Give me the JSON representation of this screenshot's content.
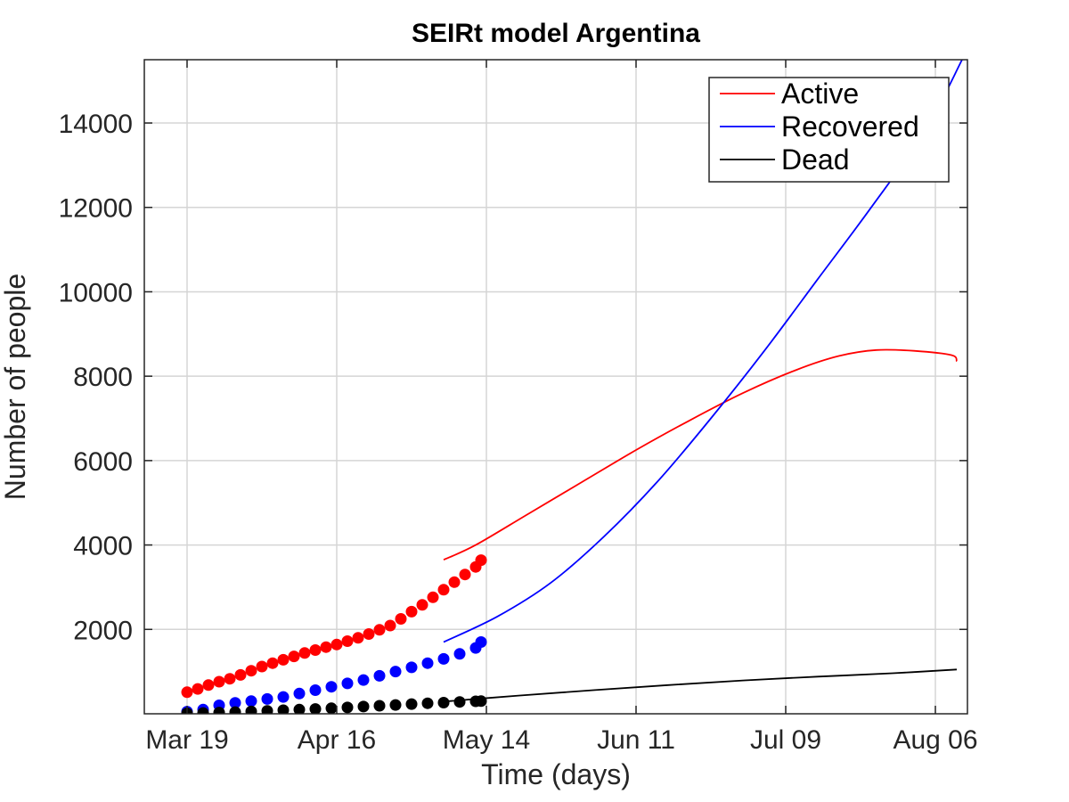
{
  "chart_data": {
    "type": "line",
    "title": "SEIRt model Argentina",
    "xlabel": "Time (days)",
    "ylabel": "Number of people",
    "x_axis_kind": "date",
    "x_range_days_from_Mar19": [
      -8,
      146
    ],
    "ylim": [
      0,
      15500
    ],
    "xticks": [
      {
        "label": "Mar 19",
        "date": "2020-03-19"
      },
      {
        "label": "Apr 16",
        "date": "2020-04-16"
      },
      {
        "label": "May 14",
        "date": "2020-05-14"
      },
      {
        "label": "Jun 11",
        "date": "2020-06-11"
      },
      {
        "label": "Jul 09",
        "date": "2020-07-09"
      },
      {
        "label": "Aug 06",
        "date": "2020-08-06"
      }
    ],
    "yticks": [
      2000,
      4000,
      6000,
      8000,
      10000,
      12000,
      14000
    ],
    "grid": true,
    "legend_position": "top-right",
    "series": [
      {
        "name": "Active",
        "color": "#ff0000",
        "model": [
          {
            "date": "2020-05-06",
            "y": 3650
          },
          {
            "date": "2020-05-12",
            "y": 4000
          },
          {
            "date": "2020-05-22",
            "y": 4750
          },
          {
            "date": "2020-06-01",
            "y": 5500
          },
          {
            "date": "2020-06-11",
            "y": 6250
          },
          {
            "date": "2020-06-21",
            "y": 6950
          },
          {
            "date": "2020-07-01",
            "y": 7600
          },
          {
            "date": "2020-07-11",
            "y": 8150
          },
          {
            "date": "2020-07-19",
            "y": 8480
          },
          {
            "date": "2020-07-26",
            "y": 8620
          },
          {
            "date": "2020-08-02",
            "y": 8600
          },
          {
            "date": "2020-08-09",
            "y": 8500
          },
          {
            "date": "2020-08-10",
            "y": 8350
          }
        ],
        "observed": [
          {
            "date": "2020-03-19",
            "y": 510
          },
          {
            "date": "2020-03-21",
            "y": 590
          },
          {
            "date": "2020-03-23",
            "y": 680
          },
          {
            "date": "2020-03-25",
            "y": 760
          },
          {
            "date": "2020-03-27",
            "y": 830
          },
          {
            "date": "2020-03-29",
            "y": 920
          },
          {
            "date": "2020-03-31",
            "y": 1020
          },
          {
            "date": "2020-04-02",
            "y": 1120
          },
          {
            "date": "2020-04-04",
            "y": 1200
          },
          {
            "date": "2020-04-06",
            "y": 1280
          },
          {
            "date": "2020-04-08",
            "y": 1360
          },
          {
            "date": "2020-04-10",
            "y": 1440
          },
          {
            "date": "2020-04-12",
            "y": 1510
          },
          {
            "date": "2020-04-14",
            "y": 1580
          },
          {
            "date": "2020-04-16",
            "y": 1640
          },
          {
            "date": "2020-04-18",
            "y": 1720
          },
          {
            "date": "2020-04-20",
            "y": 1800
          },
          {
            "date": "2020-04-22",
            "y": 1890
          },
          {
            "date": "2020-04-24",
            "y": 1990
          },
          {
            "date": "2020-04-26",
            "y": 2090
          },
          {
            "date": "2020-04-28",
            "y": 2250
          },
          {
            "date": "2020-04-30",
            "y": 2420
          },
          {
            "date": "2020-05-02",
            "y": 2580
          },
          {
            "date": "2020-05-04",
            "y": 2760
          },
          {
            "date": "2020-05-06",
            "y": 2940
          },
          {
            "date": "2020-05-08",
            "y": 3120
          },
          {
            "date": "2020-05-10",
            "y": 3300
          },
          {
            "date": "2020-05-12",
            "y": 3480
          },
          {
            "date": "2020-05-13",
            "y": 3640
          }
        ]
      },
      {
        "name": "Recovered",
        "color": "#0000ff",
        "model": [
          {
            "date": "2020-05-06",
            "y": 1700
          },
          {
            "date": "2020-05-16",
            "y": 2300
          },
          {
            "date": "2020-05-26",
            "y": 3100
          },
          {
            "date": "2020-06-05",
            "y": 4200
          },
          {
            "date": "2020-06-15",
            "y": 5500
          },
          {
            "date": "2020-06-25",
            "y": 7000
          },
          {
            "date": "2020-07-05",
            "y": 8600
          },
          {
            "date": "2020-07-15",
            "y": 10300
          },
          {
            "date": "2020-07-25",
            "y": 12000
          },
          {
            "date": "2020-08-04",
            "y": 13800
          },
          {
            "date": "2020-08-11",
            "y": 15500
          }
        ],
        "observed": [
          {
            "date": "2020-03-19",
            "y": 50
          },
          {
            "date": "2020-03-22",
            "y": 100
          },
          {
            "date": "2020-03-25",
            "y": 200
          },
          {
            "date": "2020-03-28",
            "y": 260
          },
          {
            "date": "2020-03-31",
            "y": 300
          },
          {
            "date": "2020-04-03",
            "y": 350
          },
          {
            "date": "2020-04-06",
            "y": 400
          },
          {
            "date": "2020-04-09",
            "y": 480
          },
          {
            "date": "2020-04-12",
            "y": 560
          },
          {
            "date": "2020-04-15",
            "y": 640
          },
          {
            "date": "2020-04-18",
            "y": 720
          },
          {
            "date": "2020-04-21",
            "y": 800
          },
          {
            "date": "2020-04-24",
            "y": 900
          },
          {
            "date": "2020-04-27",
            "y": 1000
          },
          {
            "date": "2020-04-30",
            "y": 1100
          },
          {
            "date": "2020-05-03",
            "y": 1200
          },
          {
            "date": "2020-05-06",
            "y": 1300
          },
          {
            "date": "2020-05-09",
            "y": 1420
          },
          {
            "date": "2020-05-12",
            "y": 1560
          },
          {
            "date": "2020-05-13",
            "y": 1700
          }
        ]
      },
      {
        "name": "Dead",
        "color": "#000000",
        "model": [
          {
            "date": "2020-05-06",
            "y": 290
          },
          {
            "date": "2020-05-20",
            "y": 430
          },
          {
            "date": "2020-06-03",
            "y": 560
          },
          {
            "date": "2020-06-17",
            "y": 680
          },
          {
            "date": "2020-07-01",
            "y": 790
          },
          {
            "date": "2020-07-15",
            "y": 880
          },
          {
            "date": "2020-07-29",
            "y": 960
          },
          {
            "date": "2020-08-10",
            "y": 1050
          }
        ],
        "observed": [
          {
            "date": "2020-03-19",
            "y": 10
          },
          {
            "date": "2020-03-22",
            "y": 20
          },
          {
            "date": "2020-03-25",
            "y": 30
          },
          {
            "date": "2020-03-28",
            "y": 40
          },
          {
            "date": "2020-03-31",
            "y": 55
          },
          {
            "date": "2020-04-03",
            "y": 70
          },
          {
            "date": "2020-04-06",
            "y": 85
          },
          {
            "date": "2020-04-09",
            "y": 100
          },
          {
            "date": "2020-04-12",
            "y": 115
          },
          {
            "date": "2020-04-15",
            "y": 130
          },
          {
            "date": "2020-04-18",
            "y": 150
          },
          {
            "date": "2020-04-21",
            "y": 170
          },
          {
            "date": "2020-04-24",
            "y": 190
          },
          {
            "date": "2020-04-27",
            "y": 210
          },
          {
            "date": "2020-04-30",
            "y": 230
          },
          {
            "date": "2020-05-03",
            "y": 250
          },
          {
            "date": "2020-05-06",
            "y": 265
          },
          {
            "date": "2020-05-09",
            "y": 280
          },
          {
            "date": "2020-05-12",
            "y": 295
          },
          {
            "date": "2020-05-13",
            "y": 300
          }
        ]
      }
    ]
  }
}
